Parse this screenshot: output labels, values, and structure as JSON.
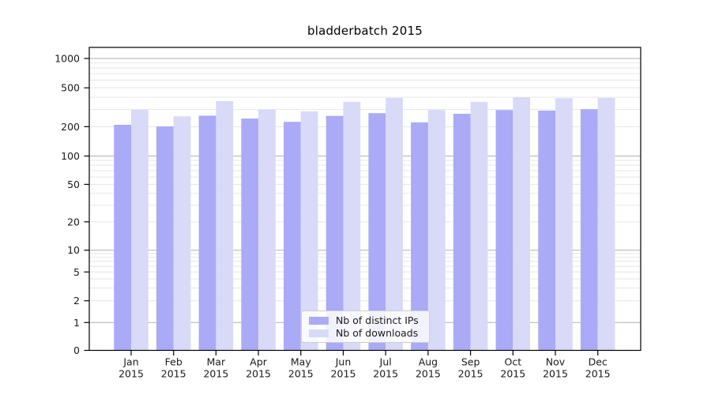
{
  "title": "bladderbatch 2015",
  "colors": {
    "distinct_ips": "#aaaaf6",
    "downloads": "#d9d9f8",
    "grid_major": "#b0b0b0",
    "grid_minor": "#e6e6e6",
    "axis": "#000000",
    "text": "#1a1a1a"
  },
  "legend": {
    "items": [
      {
        "label": "Nb of distinct IPs",
        "series": "distinct_ips"
      },
      {
        "label": "Nb of downloads",
        "series": "downloads"
      }
    ]
  },
  "chart_data": {
    "type": "bar",
    "title": "bladderbatch 2015",
    "categories": [
      "Jan",
      "Feb",
      "Mar",
      "Apr",
      "May",
      "Jun",
      "Jul",
      "Aug",
      "Sep",
      "Oct",
      "Nov",
      "Dec"
    ],
    "year_label": "2015",
    "series": [
      {
        "name": "Nb of distinct IPs",
        "values": [
          209,
          201,
          259,
          242,
          224,
          258,
          275,
          221,
          271,
          296,
          292,
          302
        ]
      },
      {
        "name": "Nb of downloads",
        "values": [
          298,
          255,
          366,
          300,
          287,
          359,
          394,
          296,
          359,
          399,
          391,
          394
        ]
      }
    ],
    "yscale": "symlog",
    "y_ticks": [
      0,
      1,
      2,
      5,
      10,
      20,
      50,
      100,
      200,
      500,
      1000
    ],
    "ylim": [
      0,
      1300
    ],
    "grid": true,
    "legend_position": "lower center"
  }
}
